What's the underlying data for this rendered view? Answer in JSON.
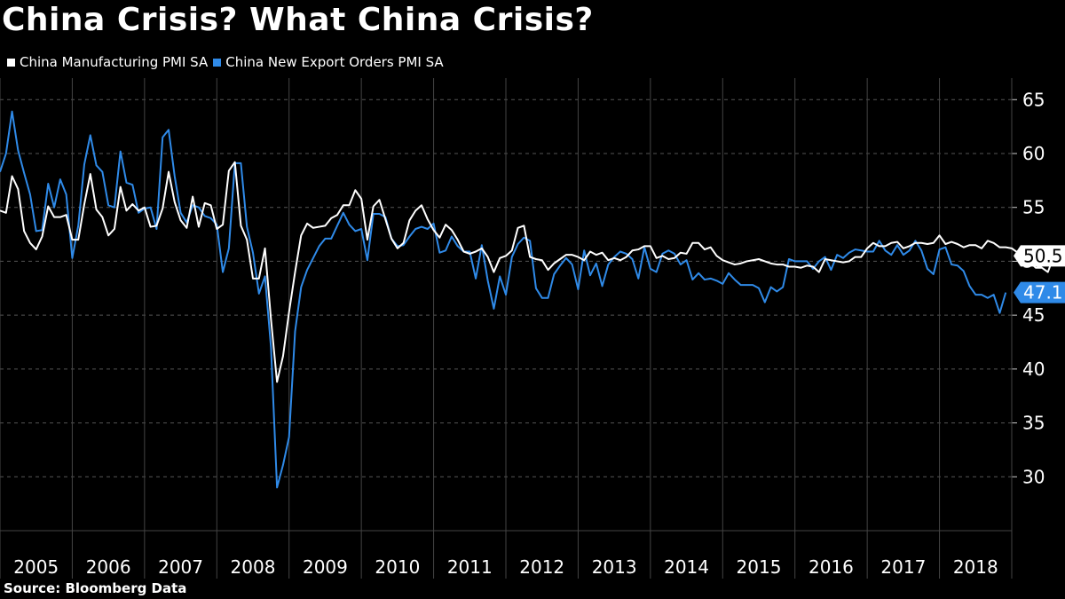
{
  "title": "China Crisis? What China Crisis?",
  "source": "Source:  Bloomberg Data",
  "colors": {
    "background": "#000000",
    "manufacturing": "#ffffff",
    "export": "#2f8ae8",
    "grid": "#555555"
  },
  "chart_data": {
    "type": "line",
    "title": "China Crisis? What China Crisis?",
    "xlabel": "",
    "ylabel": "",
    "ylim": [
      25,
      67
    ],
    "y_ticks": [
      30,
      35,
      40,
      45,
      50,
      55,
      60,
      65
    ],
    "x_start_year": 2005,
    "x_end_year": 2019,
    "x_tick_labels": [
      "2005",
      "2006",
      "2007",
      "2008",
      "2009",
      "2010",
      "2011",
      "2012",
      "2013",
      "2014",
      "2015",
      "2016",
      "2017",
      "2018"
    ],
    "grid": "horizontal dashed",
    "legend_position": "top-left",
    "series": [
      {
        "name": "China Manufacturing PMI SA",
        "color": "#ffffff",
        "last_label": "50.5",
        "values": [
          54.7,
          54.5,
          57.9,
          56.7,
          52.8,
          51.7,
          51.1,
          52.3,
          55.1,
          54.1,
          54.1,
          54.3,
          52.0,
          52.0,
          55.3,
          58.1,
          54.8,
          54.1,
          52.4,
          53.0,
          56.9,
          54.7,
          55.3,
          54.7,
          55.0,
          53.2,
          53.3,
          54.9,
          58.3,
          55.5,
          53.8,
          53.1,
          56.0,
          53.2,
          55.4,
          55.2,
          53.0,
          53.4,
          58.4,
          59.2,
          53.3,
          52.0,
          48.4,
          48.4,
          51.2,
          44.6,
          38.8,
          41.2,
          45.3,
          49.0,
          52.4,
          53.5,
          53.1,
          53.2,
          53.3,
          54.0,
          54.3,
          55.2,
          55.2,
          56.6,
          55.8,
          52.0,
          55.1,
          55.7,
          53.9,
          52.1,
          51.2,
          51.7,
          53.8,
          54.7,
          55.2,
          53.9,
          52.9,
          52.2,
          53.4,
          52.9,
          52.0,
          50.9,
          50.7,
          50.9,
          51.2,
          50.4,
          49.0,
          50.3,
          50.5,
          51.0,
          53.1,
          53.3,
          50.4,
          50.2,
          50.1,
          49.2,
          49.8,
          50.2,
          50.6,
          50.6,
          50.4,
          50.1,
          50.9,
          50.6,
          50.8,
          50.1,
          50.3,
          50.1,
          50.4,
          51.0,
          51.1,
          51.4,
          51.4,
          50.3,
          50.5,
          50.2,
          50.3,
          50.8,
          50.7,
          51.7,
          51.7,
          51.1,
          51.3,
          50.5,
          50.1,
          49.9,
          49.7,
          49.8,
          50.0,
          50.1,
          50.2,
          50.0,
          49.8,
          49.7,
          49.7,
          49.5,
          49.5,
          49.4,
          49.6,
          49.5,
          49.0,
          50.2,
          50.1,
          50.0,
          49.9,
          50.0,
          50.4,
          50.4,
          51.2,
          51.7,
          51.4,
          51.4,
          51.7,
          51.8,
          51.2,
          51.4,
          51.7,
          51.7,
          51.6,
          51.7,
          52.4,
          51.6,
          51.8,
          51.6,
          51.3,
          51.5,
          51.5,
          51.2,
          51.9,
          51.7,
          51.3,
          51.3,
          51.2,
          50.8,
          50.2,
          49.9,
          49.4,
          49.4,
          49.0,
          50.5
        ],
        "values_note": "Monthly readings, Jan 2005 onward"
      },
      {
        "name": "China New Export Orders PMI SA",
        "color": "#2f8ae8",
        "last_label": "47.1",
        "values": [
          58.3,
          60.0,
          63.9,
          60.3,
          58.2,
          56.2,
          52.8,
          52.9,
          57.2,
          55.0,
          57.6,
          56.2,
          50.3,
          53.3,
          59.0,
          61.7,
          58.9,
          58.3,
          55.2,
          55.0,
          60.2,
          57.3,
          57.1,
          54.5,
          54.9,
          55.0,
          53.0,
          61.5,
          62.2,
          57.9,
          54.5,
          53.6,
          55.2,
          55.0,
          54.2,
          54.0,
          53.4,
          49.0,
          51.2,
          59.1,
          59.1,
          53.2,
          50.8,
          47.0,
          48.6,
          42.0,
          29.0,
          31.1,
          33.7,
          43.5,
          47.6,
          49.2,
          50.3,
          51.4,
          52.1,
          52.1,
          53.3,
          54.5,
          53.4,
          52.8,
          53.0,
          50.1,
          54.4,
          54.4,
          54.1,
          52.1,
          51.4,
          51.5,
          52.3,
          53.0,
          53.2,
          53.0,
          53.5,
          50.8,
          51.0,
          52.3,
          51.4,
          50.9,
          50.9,
          48.4,
          51.5,
          48.2,
          45.6,
          48.6,
          46.9,
          50.4,
          51.6,
          52.2,
          51.9,
          47.5,
          46.6,
          46.6,
          48.8,
          49.6,
          50.3,
          49.7,
          47.4,
          51.0,
          48.7,
          49.8,
          47.7,
          49.7,
          50.4,
          50.9,
          50.7,
          50.2,
          48.4,
          51.3,
          49.3,
          49.0,
          50.7,
          51.0,
          50.7,
          49.7,
          50.1,
          48.3,
          48.9,
          48.3,
          48.4,
          48.2,
          47.9,
          48.9,
          48.3,
          47.8,
          47.8,
          47.8,
          47.5,
          46.2,
          47.6,
          47.2,
          47.6,
          50.2,
          50.0,
          50.0,
          50.0,
          49.3,
          50.0,
          50.4,
          49.2,
          50.6,
          50.3,
          50.8,
          51.1,
          51.0,
          50.9,
          50.9,
          51.9,
          51.0,
          50.6,
          51.5,
          50.6,
          51.0,
          51.9,
          51.0,
          49.3,
          48.8,
          51.1,
          51.3,
          49.7,
          49.6,
          49.1,
          47.7,
          46.9,
          46.9,
          46.6,
          46.9,
          45.2,
          47.1
        ]
      }
    ]
  }
}
